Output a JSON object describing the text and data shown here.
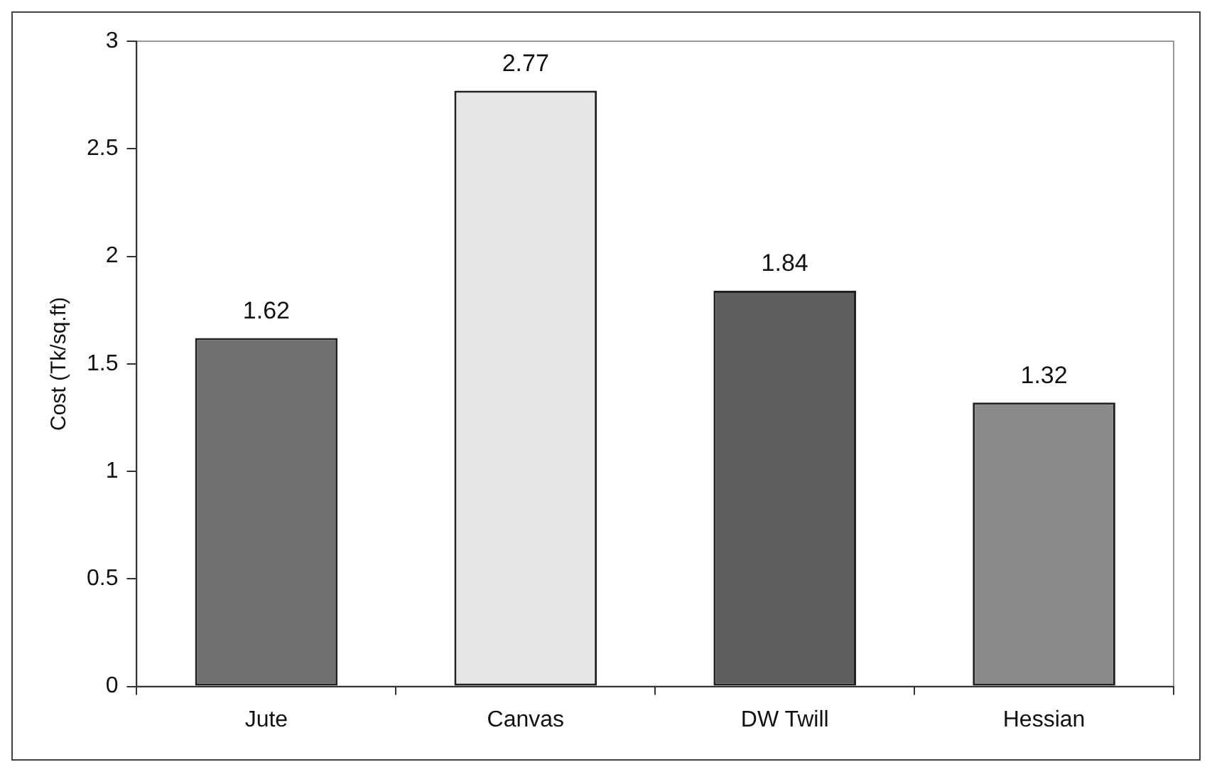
{
  "chart_data": {
    "type": "bar",
    "ylabel": "Cost (Tk/sq.ft)",
    "categories": [
      "Jute",
      "Canvas",
      "DW Twill",
      "Hessian"
    ],
    "values": [
      1.62,
      2.77,
      1.84,
      1.32
    ],
    "colors": [
      "#707070",
      "#e6e6e6",
      "#5e5e5e",
      "#8a8a8a"
    ],
    "ylim": [
      0,
      3
    ],
    "yticks": [
      0,
      0.5,
      1,
      1.5,
      2,
      2.5,
      3
    ],
    "grid": false,
    "legend": false,
    "data_labels": true
  }
}
